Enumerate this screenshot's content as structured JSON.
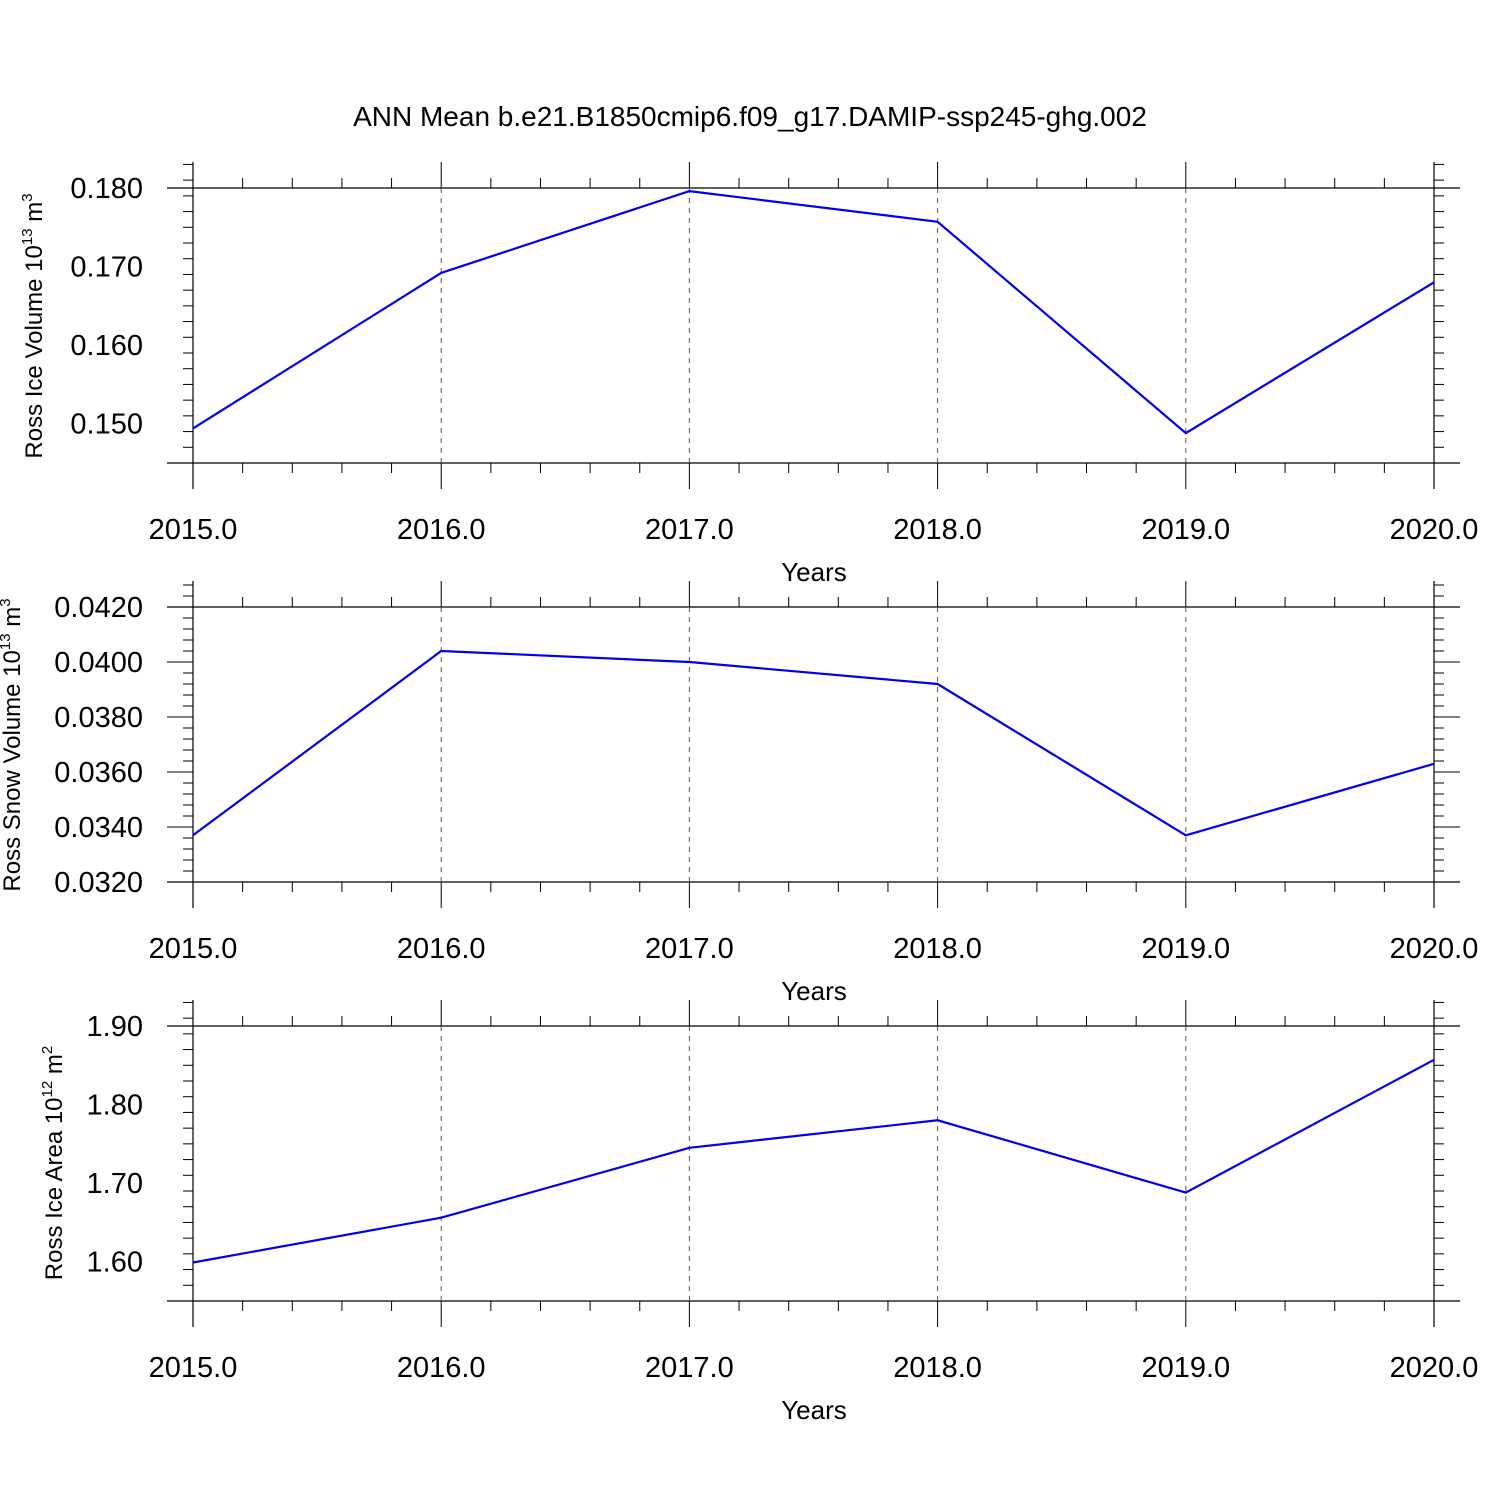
{
  "figure": {
    "title": "ANN Mean b.e21.B1850cmip6.f09_g17.DAMIP-ssp245-ghg.002"
  },
  "chart_data": [
    {
      "type": "line",
      "xlabel": "Years",
      "ylabel": {
        "prefix": "Ross Ice Volume 10",
        "exp": "13",
        "unit": " m",
        "unit_exp": "3"
      },
      "x": [
        2015,
        2016,
        2017,
        2018,
        2019,
        2020
      ],
      "xticks": [
        "2015.0",
        "2016.0",
        "2017.0",
        "2018.0",
        "2019.0",
        "2020.0"
      ],
      "y": [
        0.1494,
        0.1692,
        0.1796,
        0.1757,
        0.1488,
        0.168
      ],
      "yticks": [
        0.15,
        0.16,
        0.17,
        0.18
      ],
      "yticklabels": [
        "0.150",
        "0.160",
        "0.170",
        "0.180"
      ],
      "ylim": [
        0.145,
        0.18
      ],
      "xlim": [
        2015,
        2020.1
      ],
      "ytop": 0.183,
      "line_color": "#0000ee",
      "grid": "vertical dashed at major x ticks"
    },
    {
      "type": "line",
      "xlabel": "Years",
      "ylabel": {
        "prefix": "Ross Snow Volume 10",
        "exp": "13",
        "unit": " m",
        "unit_exp": "3"
      },
      "x": [
        2015,
        2016,
        2017,
        2018,
        2019,
        2020
      ],
      "xticks": [
        "2015.0",
        "2016.0",
        "2017.0",
        "2018.0",
        "2019.0",
        "2020.0"
      ],
      "y": [
        0.0337,
        0.0404,
        0.04,
        0.0392,
        0.0337,
        0.0363
      ],
      "yticks": [
        0.032,
        0.034,
        0.036,
        0.038,
        0.04,
        0.042
      ],
      "yticklabels": [
        "0.0320",
        "0.0340",
        "0.0360",
        "0.0380",
        "0.0400",
        "0.0420"
      ],
      "ylim": [
        0.032,
        0.042
      ],
      "xlim": [
        2015,
        2020.1
      ],
      "ytop": 0.0429,
      "line_color": "#0000ee",
      "grid": "vertical dashed at major x ticks"
    },
    {
      "type": "line",
      "xlabel": "Years",
      "ylabel": {
        "prefix": "Ross Ice Area 10",
        "exp": "12",
        "unit": " m",
        "unit_exp": "2"
      },
      "x": [
        2015,
        2016,
        2017,
        2018,
        2019,
        2020
      ],
      "xticks": [
        "2015.0",
        "2016.0",
        "2017.0",
        "2018.0",
        "2019.0",
        "2020.0"
      ],
      "y": [
        1.599,
        1.656,
        1.745,
        1.78,
        1.688,
        1.857
      ],
      "yticks": [
        1.6,
        1.7,
        1.8,
        1.9
      ],
      "yticklabels": [
        "1.60",
        "1.70",
        "1.80",
        "1.90"
      ],
      "ylim": [
        1.55,
        1.9
      ],
      "xlim": [
        2015,
        2020.1
      ],
      "ytop": 1.933,
      "line_color": "#0000ee",
      "grid": "vertical dashed at major x ticks"
    }
  ]
}
